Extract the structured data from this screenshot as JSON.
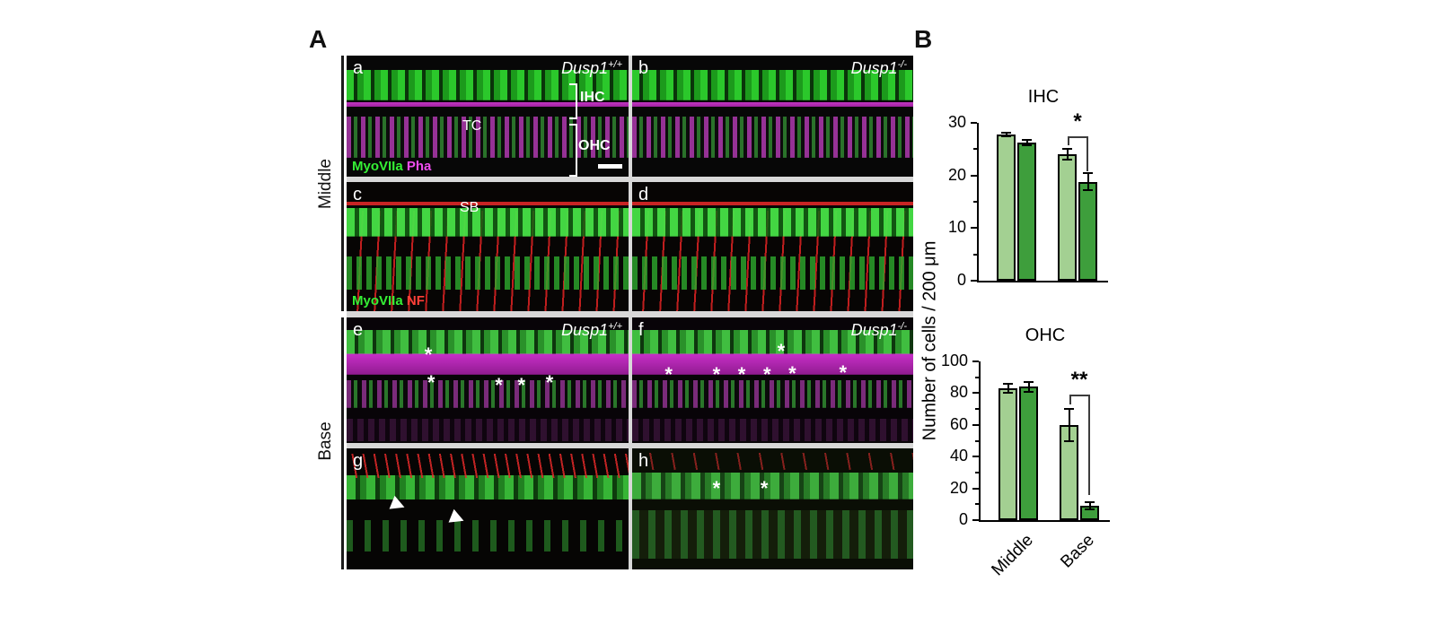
{
  "figure": {
    "panel_a_label": "A",
    "panel_b_label": "B"
  },
  "panel_a": {
    "row_groups": [
      {
        "label": "Middle"
      },
      {
        "label": "Base"
      }
    ],
    "stains_top": {
      "myo": "MyoVIIa",
      "pha": "Pha"
    },
    "stains_mid": {
      "myo": "MyoVIIa",
      "nf": "NF"
    },
    "anno": {
      "ihc": "IHC",
      "ohc": "OHC",
      "tc": "TC",
      "sb": "SB"
    },
    "panels": [
      {
        "letter": "a",
        "genotype": "Dusp1",
        "genotype_sup": "+/+"
      },
      {
        "letter": "b",
        "genotype": "Dusp1",
        "genotype_sup": "-/-"
      },
      {
        "letter": "c"
      },
      {
        "letter": "d"
      },
      {
        "letter": "e",
        "genotype": "Dusp1",
        "genotype_sup": "+/+",
        "asterisks": [
          [
            29,
            30
          ],
          [
            30,
            52
          ],
          [
            54,
            54
          ],
          [
            62,
            54
          ],
          [
            72,
            52
          ]
        ]
      },
      {
        "letter": "f",
        "genotype": "Dusp1",
        "genotype_sup": "-/-",
        "asterisks": [
          [
            53,
            27
          ],
          [
            13,
            46
          ],
          [
            30,
            46
          ],
          [
            39,
            46
          ],
          [
            48,
            46
          ],
          [
            57,
            45
          ],
          [
            75,
            44
          ]
        ]
      },
      {
        "letter": "g",
        "arrowheads": [
          [
            16,
            41
          ],
          [
            37,
            52
          ]
        ]
      },
      {
        "letter": "h",
        "asterisks": [
          [
            30,
            33
          ],
          [
            47,
            33
          ]
        ]
      }
    ]
  },
  "chart_data": [
    {
      "type": "bar",
      "title": "IHC",
      "categories": [
        "Middle",
        "Base"
      ],
      "show_category_labels": false,
      "series": [
        {
          "name": "Dusp1+/+",
          "color": "#a3d092",
          "values": [
            27.8,
            24.0
          ],
          "errors": [
            0.4,
            1.0
          ]
        },
        {
          "name": "Dusp1-/-",
          "color": "#3e9e3c",
          "values": [
            26.3,
            18.8
          ],
          "errors": [
            0.5,
            1.6
          ]
        }
      ],
      "ylim": [
        0,
        30
      ],
      "yticks": [
        0,
        10,
        20,
        30
      ],
      "yticks_minor": [
        5,
        15,
        25
      ],
      "ylabel": "Number of cells / 200 μm",
      "legend": false,
      "grid": false,
      "significance": {
        "category_index": 1,
        "label": "*",
        "bar_top": 27.5,
        "left_drop_to": 25.8,
        "right_drop_to": 20.8
      }
    },
    {
      "type": "bar",
      "title": "OHC",
      "categories": [
        "Middle",
        "Base"
      ],
      "show_category_labels": true,
      "series": [
        {
          "name": "Dusp1+/+",
          "color": "#a3d092",
          "values": [
            83,
            60
          ],
          "errors": [
            3,
            10
          ]
        },
        {
          "name": "Dusp1-/-",
          "color": "#3e9e3c",
          "values": [
            84,
            9
          ],
          "errors": [
            3,
            2.5
          ]
        }
      ],
      "ylim": [
        0,
        100
      ],
      "yticks": [
        0,
        20,
        40,
        60,
        80,
        100
      ],
      "yticks_minor": [
        10,
        30,
        50,
        70,
        90
      ],
      "ylabel": "Number of cells / 200 μm",
      "legend": false,
      "grid": false,
      "significance": {
        "category_index": 1,
        "label": "**",
        "bar_top": 79,
        "left_drop_to": 73,
        "right_drop_to": 16
      }
    }
  ]
}
